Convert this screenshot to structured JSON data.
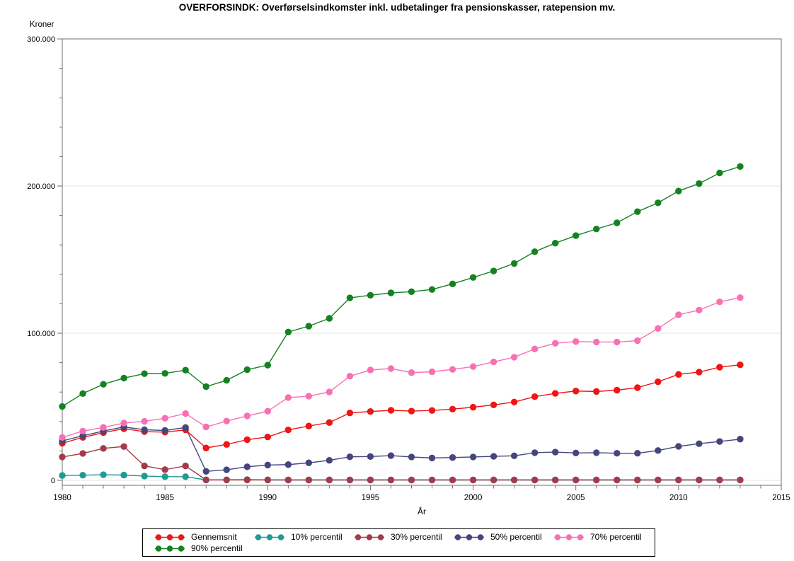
{
  "title": "OVERFORSINDK: Overførselsindkomster inkl. udbetalinger fra pensionskasser, ratepension mv.",
  "chart_data": {
    "type": "line",
    "title": "OVERFORSINDK: Overførselsindkomster inkl. udbetalinger fra pensionskasser, ratepension mv.",
    "xlabel": "År",
    "ylabel": "Kroner",
    "xlim": [
      1980,
      2015
    ],
    "ylim": [
      0,
      300000
    ],
    "x_major_ticks": [
      1980,
      1985,
      1990,
      1995,
      2000,
      2005,
      2010,
      2015
    ],
    "x_minor_tick_step": 1,
    "y_major_ticks": [
      0,
      100000,
      200000,
      300000
    ],
    "y_minor_tick_step": 20000,
    "grid": "horizontal-major",
    "legend_position": "bottom",
    "marker": "filled-circle",
    "x": [
      1980,
      1981,
      1982,
      1983,
      1984,
      1985,
      1986,
      1987,
      1988,
      1989,
      1990,
      1991,
      1992,
      1993,
      1994,
      1995,
      1996,
      1997,
      1998,
      1999,
      2000,
      2001,
      2002,
      2003,
      2004,
      2005,
      2006,
      2007,
      2008,
      2009,
      2010,
      2011,
      2012,
      2013
    ],
    "series": [
      {
        "name": "Gennemsnit",
        "color": "#f01414",
        "values": [
          25200,
          29200,
          32400,
          35100,
          33100,
          32800,
          34300,
          22000,
          24400,
          27600,
          29500,
          34300,
          36900,
          39300,
          45800,
          46800,
          47600,
          47100,
          47500,
          48400,
          49700,
          51300,
          53200,
          56900,
          59100,
          60700,
          60400,
          61300,
          63000,
          67000,
          72000,
          73600,
          76900,
          78500
        ]
      },
      {
        "name": "10% percentil",
        "color": "#1e9b94",
        "values": [
          3300,
          3500,
          3800,
          3600,
          2900,
          2500,
          2500,
          300,
          400,
          500,
          300,
          200,
          200,
          200,
          200,
          200,
          200,
          200,
          200,
          200,
          200,
          200,
          200,
          200,
          200,
          200,
          200,
          200,
          200,
          200,
          200,
          200,
          200,
          200
        ]
      },
      {
        "name": "30% percentil",
        "color": "#a23b4b",
        "values": [
          15900,
          18300,
          21700,
          23000,
          9800,
          7300,
          9800,
          300,
          300,
          300,
          300,
          300,
          300,
          300,
          300,
          300,
          300,
          300,
          300,
          300,
          300,
          300,
          300,
          300,
          300,
          300,
          300,
          300,
          300,
          300,
          300,
          300,
          300,
          300
        ]
      },
      {
        "name": "50% percentil",
        "color": "#45467e",
        "values": [
          26800,
          30300,
          33500,
          36300,
          34400,
          33900,
          35900,
          6100,
          7200,
          9200,
          10400,
          10700,
          11900,
          13600,
          16000,
          16200,
          16800,
          15900,
          15200,
          15500,
          15900,
          16300,
          16700,
          18800,
          19200,
          18600,
          18800,
          18400,
          18400,
          20300,
          23100,
          24900,
          26400,
          28000
        ]
      },
      {
        "name": "70% percentil",
        "color": "#f870b4",
        "values": [
          29200,
          33500,
          36000,
          38900,
          40100,
          42200,
          45400,
          36300,
          40300,
          43800,
          47000,
          56300,
          57200,
          60100,
          70800,
          75000,
          76000,
          73200,
          73800,
          75400,
          77300,
          80500,
          83700,
          89300,
          93200,
          94300,
          94000,
          94000,
          94900,
          103200,
          112500,
          115700,
          121300,
          124200
        ]
      },
      {
        "name": "90% percentil",
        "color": "#148220",
        "values": [
          50200,
          59000,
          65300,
          69500,
          72500,
          72700,
          74900,
          63700,
          68000,
          75200,
          78300,
          100800,
          104800,
          110100,
          124000,
          125800,
          127400,
          128200,
          129700,
          133500,
          137900,
          142300,
          147400,
          155400,
          161200,
          166300,
          170800,
          175000,
          182600,
          188600,
          196600,
          201700,
          208900,
          213300
        ]
      }
    ]
  }
}
